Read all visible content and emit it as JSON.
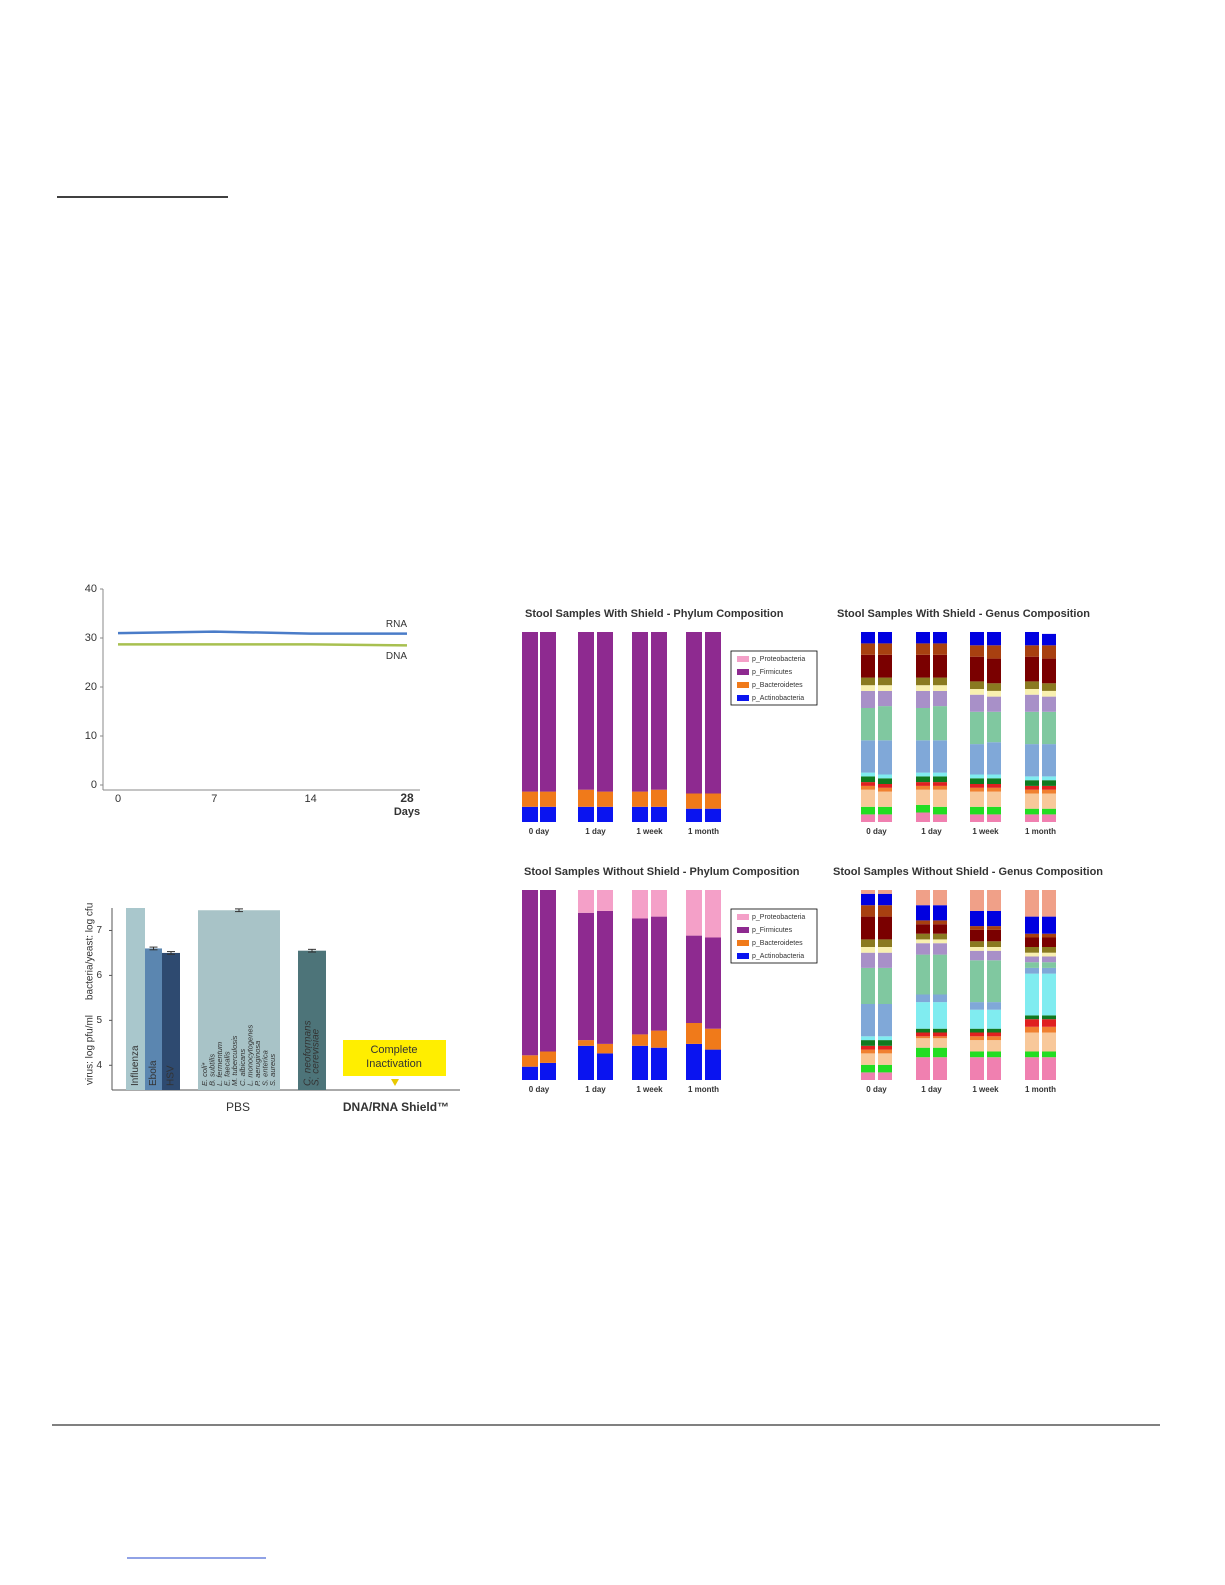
{
  "chart_data": [
    {
      "type": "line",
      "categories": [
        "0",
        "7",
        "14",
        "28"
      ],
      "xlabel": "Days",
      "ylim": [
        0,
        40
      ],
      "yticks": [
        0,
        10,
        20,
        30,
        40
      ],
      "series": [
        {
          "name": "RNA",
          "color": "#4a7cc8",
          "values": [
            31,
            31.3,
            30.9,
            30.9
          ]
        },
        {
          "name": "DNA",
          "color": "#a8c050",
          "values": [
            28.7,
            28.7,
            28.7,
            28.5
          ]
        }
      ]
    },
    {
      "type": "bar",
      "ylabel": [
        "virus: log pfu/ml",
        "bacteria/yeast: log cfu"
      ],
      "ylim": [
        3.45,
        7.5
      ],
      "yticks": [
        4,
        5,
        6,
        7
      ],
      "categories": [
        [
          "Influenza"
        ],
        [
          "Ebola"
        ],
        [
          "HSV"
        ],
        [
          "E. coli*",
          "B. subtilis",
          "L. fermentum",
          "E. faecalis",
          "M. tuberculosis",
          "C. albicans",
          "L. monocytogenes",
          "P. aeruginosa",
          "S. enterica",
          "S. aureus"
        ],
        [
          "C. neoformans",
          "S. cerevisiae"
        ]
      ],
      "values": [
        7.5,
        6.6,
        6.5,
        7.45,
        6.55
      ],
      "errors": [
        null,
        0.03,
        0.03,
        0.03,
        0.03
      ],
      "colors": [
        "#a9c7cc",
        "#5b86b0",
        "#2e4a70",
        "#a8c3c7",
        "#4d7479"
      ],
      "group_labels": [
        "PBS",
        "DNA/RNA Shield™"
      ],
      "annotation": [
        "Complete",
        "Inactivation"
      ]
    },
    {
      "type": "stacked_bar",
      "title": "Stool Samples With Shield - Phylum Composition",
      "legend": true,
      "ylim": [
        0,
        100
      ],
      "categories": [
        "0 day",
        null,
        "1 day",
        null,
        "1 week",
        null,
        "1 month",
        null
      ],
      "series": [
        {
          "name": "p_Actinobacteria",
          "color": "#0a14f0",
          "values": [
            8,
            8,
            8,
            8,
            8,
            8,
            7,
            7
          ]
        },
        {
          "name": "p_Bacteroidetes",
          "color": "#f07a1a",
          "values": [
            8,
            8,
            9,
            8,
            8,
            9,
            8,
            8
          ]
        },
        {
          "name": "p_Firmicutes",
          "color": "#8e2a90",
          "values": [
            84,
            84,
            83,
            84,
            84,
            83,
            85,
            85
          ]
        },
        {
          "name": "p_Proteobacteria",
          "color": "#f4a0c8",
          "values": [
            0,
            0,
            0,
            0,
            0,
            0,
            0,
            0
          ]
        }
      ]
    },
    {
      "type": "stacked_bar",
      "title": "Stool Samples With Shield - Genus Composition",
      "ylim": [
        0,
        100
      ],
      "categories": [
        "0 day",
        null,
        "1 day",
        null,
        "1 week",
        null,
        "1 month",
        null
      ],
      "series": [
        {
          "color": "#f080b0",
          "values": [
            4,
            4,
            5,
            4,
            4,
            4,
            4,
            4
          ]
        },
        {
          "color": "#22dd22",
          "values": [
            4,
            4,
            4,
            4,
            4,
            4,
            3,
            3
          ]
        },
        {
          "color": "#f8c89a",
          "values": [
            9,
            8,
            8,
            9,
            8,
            8,
            8,
            8
          ]
        },
        {
          "color": "#f08030",
          "values": [
            2,
            2,
            2,
            2,
            2,
            2,
            2,
            2
          ]
        },
        {
          "color": "#e02020",
          "values": [
            2,
            2,
            2,
            2,
            2,
            2,
            2,
            2
          ]
        },
        {
          "color": "#107a20",
          "values": [
            3,
            3,
            3,
            3,
            3,
            3,
            3,
            3
          ]
        },
        {
          "color": "#80ecf0",
          "values": [
            2,
            2,
            2,
            2,
            2,
            2,
            2,
            2
          ]
        },
        {
          "color": "#80a8d8",
          "values": [
            17,
            18,
            17,
            17,
            16,
            17,
            17,
            17
          ]
        },
        {
          "color": "#80c8a0",
          "values": [
            17,
            18,
            17,
            18,
            17,
            16,
            17,
            17
          ]
        },
        {
          "color": "#a890c8",
          "values": [
            9,
            8,
            9,
            8,
            9,
            8,
            9,
            8
          ]
        },
        {
          "color": "#f8f0b0",
          "values": [
            3,
            3,
            3,
            3,
            3,
            3,
            3,
            3
          ]
        },
        {
          "color": "#8a7a20",
          "values": [
            4,
            4,
            4,
            4,
            4,
            4,
            4,
            4
          ]
        },
        {
          "color": "#7a0000",
          "values": [
            12,
            12,
            12,
            12,
            13,
            13,
            13,
            13
          ]
        },
        {
          "color": "#a84010",
          "values": [
            6,
            6,
            6,
            6,
            6,
            7,
            6,
            7
          ]
        },
        {
          "color": "#0000e0",
          "values": [
            6,
            6,
            6,
            6,
            7,
            7,
            7,
            6
          ]
        },
        {
          "color": "#f0a088",
          "values": [
            0,
            0,
            0,
            0,
            0,
            0,
            0,
            0
          ]
        }
      ]
    },
    {
      "type": "stacked_bar",
      "title": "Stool Samples Without Shield - Phylum Composition",
      "legend": true,
      "ylim": [
        0,
        100
      ],
      "categories": [
        "0 day",
        null,
        "1 day",
        null,
        "1 week",
        null,
        "1 month",
        null
      ],
      "series": [
        {
          "name": "p_Actinobacteria",
          "color": "#0a14f0",
          "values": [
            7,
            9,
            18,
            14,
            18,
            17,
            19,
            16
          ]
        },
        {
          "name": "p_Bacteroidetes",
          "color": "#f07a1a",
          "values": [
            6,
            6,
            3,
            5,
            6,
            9,
            11,
            11
          ]
        },
        {
          "name": "p_Firmicutes",
          "color": "#8e2a90",
          "values": [
            87,
            85,
            67,
            70,
            61,
            60,
            46,
            48
          ]
        },
        {
          "name": "p_Proteobacteria",
          "color": "#f4a0c8",
          "values": [
            0,
            0,
            12,
            11,
            15,
            14,
            24,
            25
          ]
        }
      ]
    },
    {
      "type": "stacked_bar",
      "title": "Stool Samples Without Shield - Genus Composition",
      "ylim": [
        0,
        100
      ],
      "categories": [
        "0 day",
        null,
        "1 day",
        null,
        "1 week",
        null,
        "1 month",
        null
      ],
      "series": [
        {
          "color": "#f080b0",
          "values": [
            4,
            4,
            12,
            12,
            12,
            12,
            12,
            12
          ]
        },
        {
          "color": "#22dd22",
          "values": [
            4,
            4,
            5,
            5,
            3,
            3,
            3,
            3
          ]
        },
        {
          "color": "#f8c89a",
          "values": [
            6,
            6,
            5,
            5,
            6,
            6,
            10,
            10
          ]
        },
        {
          "color": "#f08030",
          "values": [
            2,
            2,
            1,
            1,
            2,
            2,
            3,
            3
          ]
        },
        {
          "color": "#e02020",
          "values": [
            2,
            2,
            2,
            2,
            2,
            2,
            4,
            4
          ]
        },
        {
          "color": "#107a20",
          "values": [
            3,
            3,
            2,
            2,
            2,
            2,
            2,
            2
          ]
        },
        {
          "color": "#80ecf0",
          "values": [
            2,
            2,
            14,
            14,
            10,
            10,
            22,
            22
          ]
        },
        {
          "color": "#80a8d8",
          "values": [
            17,
            17,
            4,
            4,
            4,
            4,
            3,
            3
          ]
        },
        {
          "color": "#80c8a0",
          "values": [
            19,
            19,
            21,
            21,
            22,
            22,
            3,
            3
          ]
        },
        {
          "color": "#a890c8",
          "values": [
            8,
            8,
            6,
            6,
            5,
            5,
            3,
            3
          ]
        },
        {
          "color": "#f8f0b0",
          "values": [
            3,
            3,
            2,
            2,
            2,
            2,
            2,
            2
          ]
        },
        {
          "color": "#8a7a20",
          "values": [
            4,
            4,
            3,
            3,
            3,
            3,
            3,
            3
          ]
        },
        {
          "color": "#7a0000",
          "values": [
            12,
            12,
            5,
            5,
            6,
            6,
            5,
            5
          ]
        },
        {
          "color": "#a84010",
          "values": [
            6,
            6,
            2,
            2,
            2,
            2,
            2,
            2
          ]
        },
        {
          "color": "#0000e0",
          "values": [
            6,
            6,
            8,
            8,
            8,
            8,
            9,
            9
          ]
        },
        {
          "color": "#f0a088",
          "values": [
            2,
            2,
            8,
            8,
            11,
            11,
            14,
            14
          ]
        }
      ]
    }
  ]
}
